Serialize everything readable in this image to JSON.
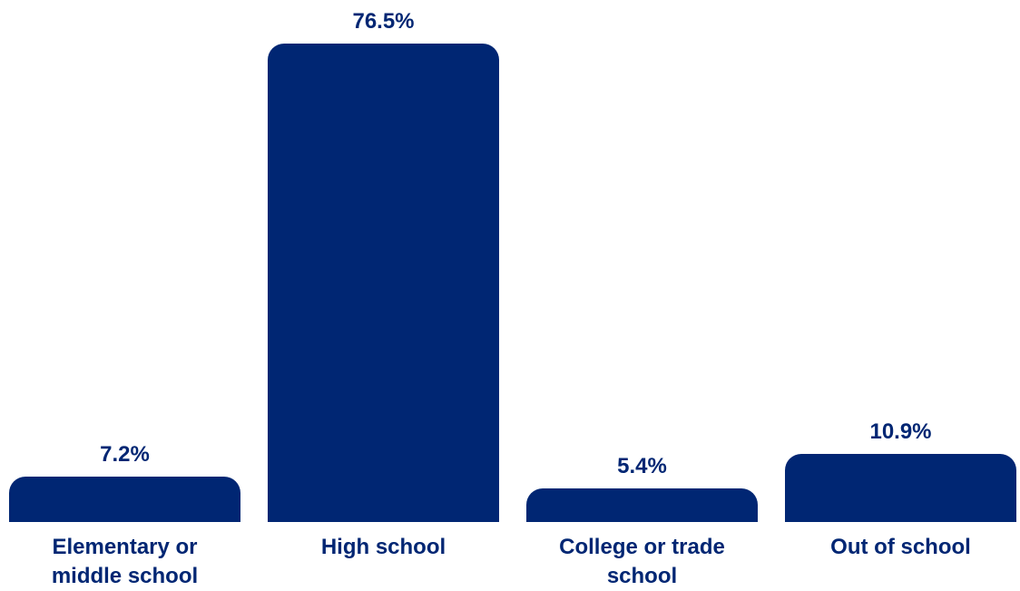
{
  "chart_data": {
    "type": "bar",
    "categories": [
      "Elementary or middle school",
      "High school",
      "College or trade school",
      "Out of school"
    ],
    "values": [
      7.2,
      76.5,
      5.4,
      10.9
    ],
    "value_labels": [
      "7.2%",
      "76.5%",
      "5.4%",
      "10.9%"
    ],
    "color": "#002673"
  }
}
